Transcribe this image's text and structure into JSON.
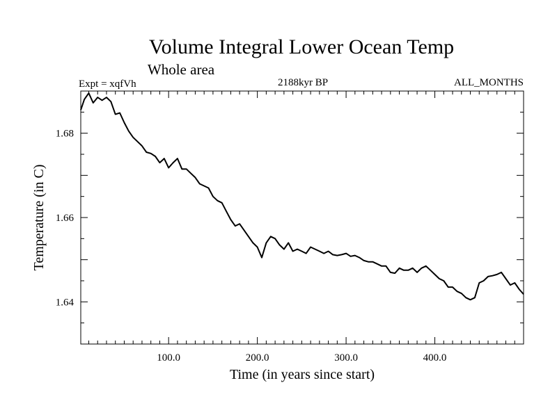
{
  "chart_data": {
    "type": "line",
    "title": "Volume Integral Lower Ocean Temp",
    "subtitle": "Whole area",
    "expt_label": "Expt = xqfVh",
    "period_label": "2188kyr BP",
    "months_label": "ALL_MONTHS",
    "xlabel": "Time (in years since start)",
    "ylabel": "Temperature (in C)",
    "xlim": [
      1,
      500
    ],
    "ylim": [
      1.63,
      1.69
    ],
    "x_ticks": [
      {
        "value": 100,
        "label": "100.0"
      },
      {
        "value": 200,
        "label": "200.0"
      },
      {
        "value": 300,
        "label": "300.0"
      },
      {
        "value": 400,
        "label": "400.0"
      }
    ],
    "y_ticks": [
      {
        "value": 1.64,
        "label": "1.64"
      },
      {
        "value": 1.66,
        "label": "1.66"
      },
      {
        "value": 1.68,
        "label": "1.68"
      }
    ],
    "series": [
      {
        "name": "Volume integral lower ocean temperature",
        "x": [
          1,
          5,
          10,
          15,
          20,
          25,
          30,
          35,
          40,
          45,
          50,
          55,
          60,
          65,
          70,
          75,
          80,
          85,
          90,
          95,
          100,
          105,
          110,
          115,
          120,
          125,
          130,
          135,
          140,
          145,
          150,
          155,
          160,
          165,
          170,
          175,
          180,
          185,
          190,
          195,
          200,
          205,
          210,
          215,
          220,
          225,
          230,
          235,
          240,
          245,
          250,
          255,
          260,
          265,
          270,
          275,
          280,
          285,
          290,
          295,
          300,
          305,
          310,
          315,
          320,
          325,
          330,
          335,
          340,
          345,
          350,
          355,
          360,
          365,
          370,
          375,
          380,
          385,
          390,
          395,
          400,
          405,
          410,
          415,
          420,
          425,
          430,
          435,
          440,
          445,
          450,
          455,
          460,
          465,
          470,
          475,
          480,
          485,
          490,
          495,
          500
        ],
        "values": [
          1.6855,
          1.688,
          1.6895,
          1.6872,
          1.6885,
          1.6878,
          1.6885,
          1.6875,
          1.6845,
          1.6848,
          1.6825,
          1.6805,
          1.679,
          1.678,
          1.677,
          1.6755,
          1.6752,
          1.6745,
          1.673,
          1.674,
          1.6718,
          1.673,
          1.674,
          1.6715,
          1.6715,
          1.6705,
          1.6695,
          1.668,
          1.6675,
          1.667,
          1.665,
          1.664,
          1.6635,
          1.6615,
          1.6595,
          1.658,
          1.6585,
          1.657,
          1.6555,
          1.654,
          1.653,
          1.6505,
          1.654,
          1.6555,
          1.655,
          1.6535,
          1.6525,
          1.654,
          1.652,
          1.6525,
          1.652,
          1.6515,
          1.653,
          1.6525,
          1.652,
          1.6515,
          1.652,
          1.6512,
          1.651,
          1.6512,
          1.6515,
          1.6508,
          1.651,
          1.6505,
          1.6498,
          1.6495,
          1.6495,
          1.649,
          1.6485,
          1.6485,
          1.647,
          1.6468,
          1.648,
          1.6475,
          1.6475,
          1.648,
          1.647,
          1.648,
          1.6485,
          1.6475,
          1.6465,
          1.6455,
          1.645,
          1.6435,
          1.6435,
          1.6425,
          1.642,
          1.641,
          1.6405,
          1.641,
          1.6445,
          1.645,
          1.646,
          1.6462,
          1.6465,
          1.647,
          1.6455,
          1.644,
          1.6445,
          1.643,
          1.6418
        ]
      }
    ]
  }
}
